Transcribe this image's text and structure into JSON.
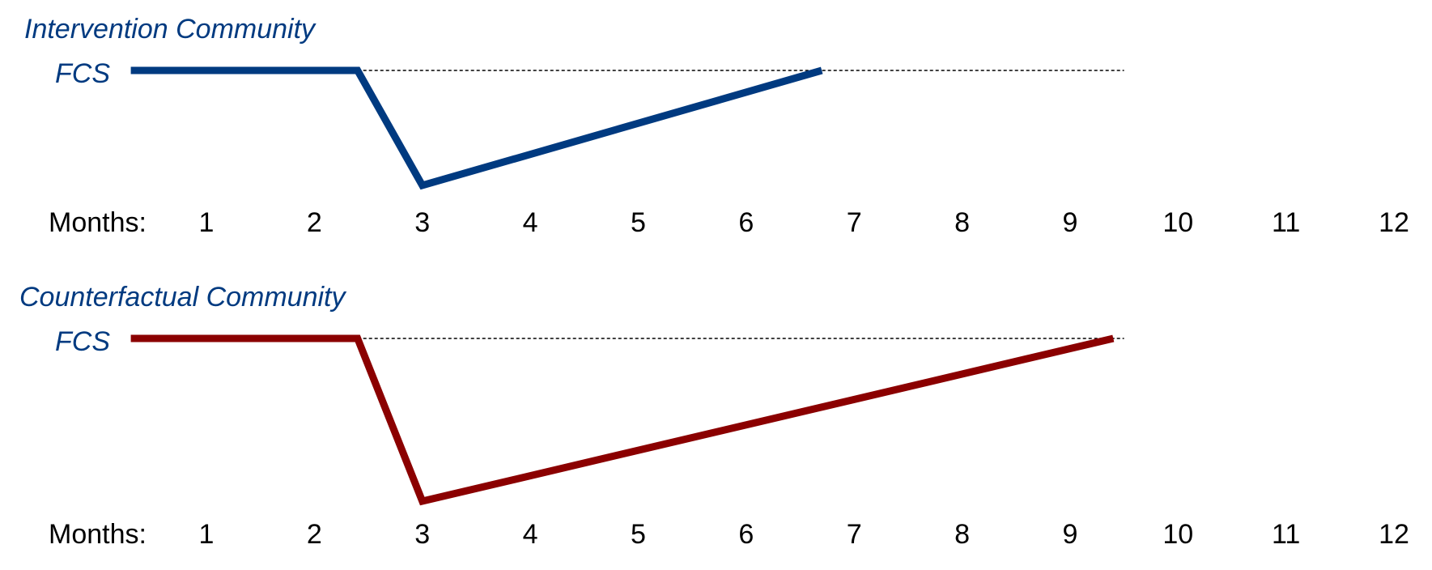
{
  "chart_data": [
    {
      "type": "line",
      "title": "Intervention Community",
      "ylabel": "FCS",
      "xlabel": "Months:",
      "x_ticks": [
        "1",
        "2",
        "3",
        "4",
        "5",
        "6",
        "7",
        "8",
        "9",
        "10",
        "11",
        "12"
      ],
      "baseline": {
        "style": "dashed",
        "x_start": 2.4,
        "x_end": 9.5,
        "y": 0
      },
      "series": [
        {
          "color": "#003a80",
          "x": [
            0.3,
            2.4,
            3.0,
            6.7
          ],
          "y": [
            0,
            0,
            -1,
            0
          ]
        }
      ]
    },
    {
      "type": "line",
      "title": "Counterfactual Community",
      "ylabel": "FCS",
      "xlabel": "Months:",
      "x_ticks": [
        "1",
        "2",
        "3",
        "4",
        "5",
        "6",
        "7",
        "8",
        "9",
        "10",
        "11",
        "12"
      ],
      "baseline": {
        "style": "dashed",
        "x_start": 2.4,
        "x_end": 9.5,
        "y": 0
      },
      "series": [
        {
          "color": "#8b0000",
          "x": [
            0.3,
            2.4,
            3.0,
            9.4
          ],
          "y": [
            0,
            0,
            -1,
            0
          ]
        }
      ]
    }
  ],
  "colors": {
    "title_text": "#003a80",
    "baseline": "#000000"
  }
}
